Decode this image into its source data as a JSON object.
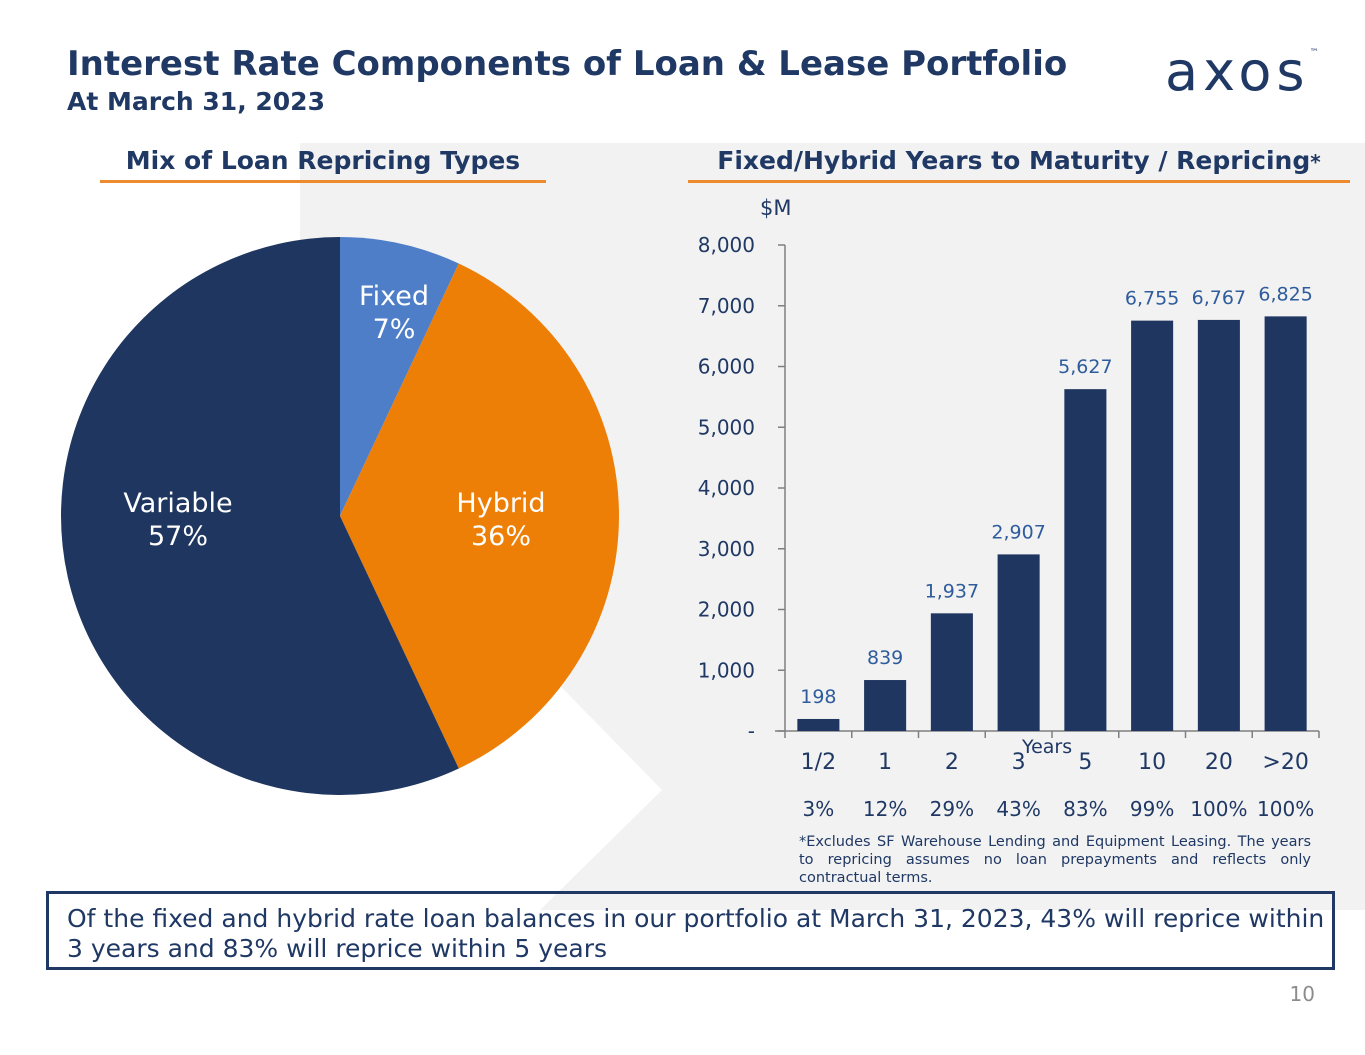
{
  "header": {
    "title": "Interest Rate Components of Loan & Lease Portfolio",
    "subtitle": "At March 31, 2023",
    "logo_text": "axos",
    "logo_tm": "™"
  },
  "pie_section": {
    "heading": "Mix of Loan Repricing Types"
  },
  "bar_section": {
    "heading": "Fixed/Hybrid Years to Maturity / Repricing",
    "heading_mark": "*"
  },
  "chart_data": [
    {
      "type": "pie",
      "title": "Mix of Loan Repricing Types",
      "slices": [
        {
          "label": "Fixed",
          "percent_label": "7%",
          "value": 7,
          "color": "#4f7ec8"
        },
        {
          "label": "Hybrid",
          "percent_label": "36%",
          "value": 36,
          "color": "#ed7e06"
        },
        {
          "label": "Variable",
          "percent_label": "57%",
          "value": 57,
          "color": "#1f3660"
        }
      ]
    },
    {
      "type": "bar",
      "title": "Fixed/Hybrid Years to Maturity / Repricing*",
      "unit_label": "$M",
      "xlabel": "Years",
      "categories": [
        "1/2",
        "1",
        "2",
        "3",
        "5",
        "10",
        "20",
        ">20"
      ],
      "values": [
        198,
        839,
        1937,
        2907,
        5627,
        6755,
        6767,
        6825
      ],
      "value_labels": [
        "198",
        "839",
        "1,937",
        "2,907",
        "5,627",
        "6,755",
        "6,767",
        "6,825"
      ],
      "cumulative_percent": [
        "3%",
        "12%",
        "29%",
        "43%",
        "83%",
        "99%",
        "100%",
        "100%"
      ],
      "ylim": [
        0,
        8000
      ],
      "yticks": [
        0,
        1000,
        2000,
        3000,
        4000,
        5000,
        6000,
        7000,
        8000
      ],
      "ytick_labels": [
        "-",
        "1,000",
        "2,000",
        "3,000",
        "4,000",
        "5,000",
        "6,000",
        "7,000",
        "8,000"
      ],
      "bar_color": "#1f3660",
      "label_color": "#2e5c9c"
    }
  ],
  "footnote": "*Excludes SF Warehouse Lending and Equipment Leasing. The years to repricing assumes no loan prepayments and reflects only contractual terms.",
  "callout": "Of the fixed and hybrid rate loan balances in our portfolio at March 31, 2023, 43% will reprice within 3 years and 83% will reprice within 5 years",
  "page_number": "10"
}
